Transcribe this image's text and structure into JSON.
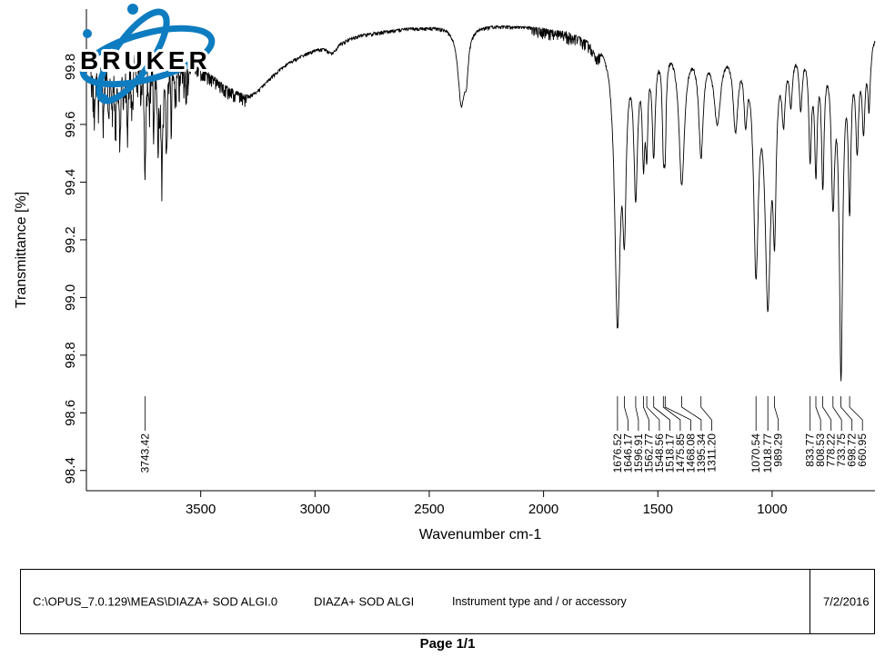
{
  "logo": {
    "text": "BRUKER",
    "color": "#0e7cc0"
  },
  "chart_data": {
    "type": "line",
    "title": "",
    "xlabel": "Wavenumber cm-1",
    "ylabel": "Transmittance [%]",
    "xlim": [
      4000,
      550
    ],
    "ylim": [
      98.33,
      100.0
    ],
    "x_ticks": [
      3500,
      3000,
      2500,
      2000,
      1500,
      1000
    ],
    "y_ticks": [
      "98.4",
      "98.6",
      "98.8",
      "99.0",
      "99.2",
      "99.4",
      "99.6",
      "99.8"
    ],
    "grid": false,
    "legend": false,
    "peak_labels": [
      "3743.42",
      "1676.52",
      "1646.17",
      "1596.91",
      "1562.77",
      "1548.56",
      "1518.17",
      "1475.85",
      "1468.08",
      "1395.34",
      "1311.20",
      "1070.54",
      "1018.77",
      "989.29",
      "833.77",
      "808.53",
      "778.22",
      "733.75",
      "698.72",
      "660.95"
    ],
    "spectrum_model": {
      "baseline": [
        [
          4000,
          99.8
        ],
        [
          3900,
          99.86
        ],
        [
          3800,
          99.9
        ],
        [
          3700,
          99.9
        ],
        [
          3600,
          99.86
        ],
        [
          3500,
          99.82
        ],
        [
          3400,
          99.79
        ],
        [
          3300,
          99.8
        ],
        [
          3200,
          99.83
        ],
        [
          3000,
          99.88
        ],
        [
          2800,
          99.92
        ],
        [
          2600,
          99.94
        ],
        [
          2400,
          99.95
        ],
        [
          2200,
          99.95
        ],
        [
          2000,
          99.94
        ],
        [
          1900,
          99.93
        ],
        [
          1800,
          99.91
        ],
        [
          1700,
          99.9
        ],
        [
          1600,
          99.91
        ],
        [
          1500,
          99.9
        ],
        [
          1400,
          99.9
        ],
        [
          1300,
          99.89
        ],
        [
          1200,
          99.9
        ],
        [
          1100,
          99.92
        ],
        [
          1000,
          99.9
        ],
        [
          900,
          99.9
        ],
        [
          800,
          99.89
        ],
        [
          700,
          99.9
        ],
        [
          600,
          99.91
        ],
        [
          550,
          99.93
        ]
      ],
      "peaks": [
        [
          3964,
          0.15,
          4
        ],
        [
          3947,
          0.1,
          3
        ],
        [
          3925,
          0.18,
          4
        ],
        [
          3902,
          0.2,
          4
        ],
        [
          3886,
          0.14,
          3
        ],
        [
          3872,
          0.22,
          4
        ],
        [
          3853,
          0.3,
          4
        ],
        [
          3838,
          0.18,
          3
        ],
        [
          3820,
          0.26,
          4
        ],
        [
          3800,
          0.2,
          4
        ],
        [
          3779,
          0.16,
          3
        ],
        [
          3760,
          0.12,
          3
        ],
        [
          3743.42,
          0.42,
          5
        ],
        [
          3724,
          0.18,
          3
        ],
        [
          3705,
          0.22,
          4
        ],
        [
          3687,
          0.28,
          4
        ],
        [
          3670,
          0.4,
          5
        ],
        [
          3649,
          0.32,
          4
        ],
        [
          3629,
          0.2,
          3
        ],
        [
          3610,
          0.14,
          3
        ],
        [
          3590,
          0.09,
          3
        ],
        [
          3565,
          0.07,
          3
        ],
        [
          3280,
          0.1,
          120
        ],
        [
          2925,
          0.035,
          25
        ],
        [
          2360,
          0.26,
          18
        ],
        [
          2338,
          0.12,
          10
        ],
        [
          1772,
          0.04,
          12
        ],
        [
          1676.52,
          0.95,
          15
        ],
        [
          1646.17,
          0.52,
          9
        ],
        [
          1596.91,
          0.5,
          10
        ],
        [
          1562.77,
          0.34,
          7
        ],
        [
          1548.56,
          0.3,
          6
        ],
        [
          1518.17,
          0.36,
          8
        ],
        [
          1475.85,
          0.3,
          6
        ],
        [
          1468.08,
          0.28,
          5
        ],
        [
          1395.34,
          0.48,
          15
        ],
        [
          1311.2,
          0.36,
          12
        ],
        [
          1240,
          0.26,
          18
        ],
        [
          1160,
          0.28,
          13
        ],
        [
          1116,
          0.22,
          9
        ],
        [
          1070.54,
          0.75,
          13
        ],
        [
          1018.77,
          0.85,
          15
        ],
        [
          989.29,
          0.52,
          8
        ],
        [
          950,
          0.22,
          9
        ],
        [
          918,
          0.18,
          8
        ],
        [
          875,
          0.2,
          8
        ],
        [
          833.77,
          0.36,
          7
        ],
        [
          808.53,
          0.4,
          7
        ],
        [
          778.22,
          0.44,
          7
        ],
        [
          733.75,
          0.5,
          9
        ],
        [
          698.72,
          1.12,
          9
        ],
        [
          660.95,
          0.52,
          7
        ],
        [
          628,
          0.34,
          8
        ],
        [
          600,
          0.28,
          8
        ],
        [
          576,
          0.22,
          7
        ]
      ],
      "noise_bands": [
        [
          3980,
          3550,
          0.12
        ],
        [
          3550,
          3300,
          0.035
        ],
        [
          2050,
          1750,
          0.03
        ],
        [
          4000,
          550,
          0.012
        ]
      ]
    }
  },
  "footer": {
    "file_path": "C:\\OPUS_7.0.129\\MEAS\\DIAZA+ SOD ALGI.0",
    "sample_name": "DIAZA+ SOD ALGI",
    "instrument": "Instrument type and / or accessory",
    "date": "7/2/2016"
  },
  "page_label": "Page 1/1"
}
